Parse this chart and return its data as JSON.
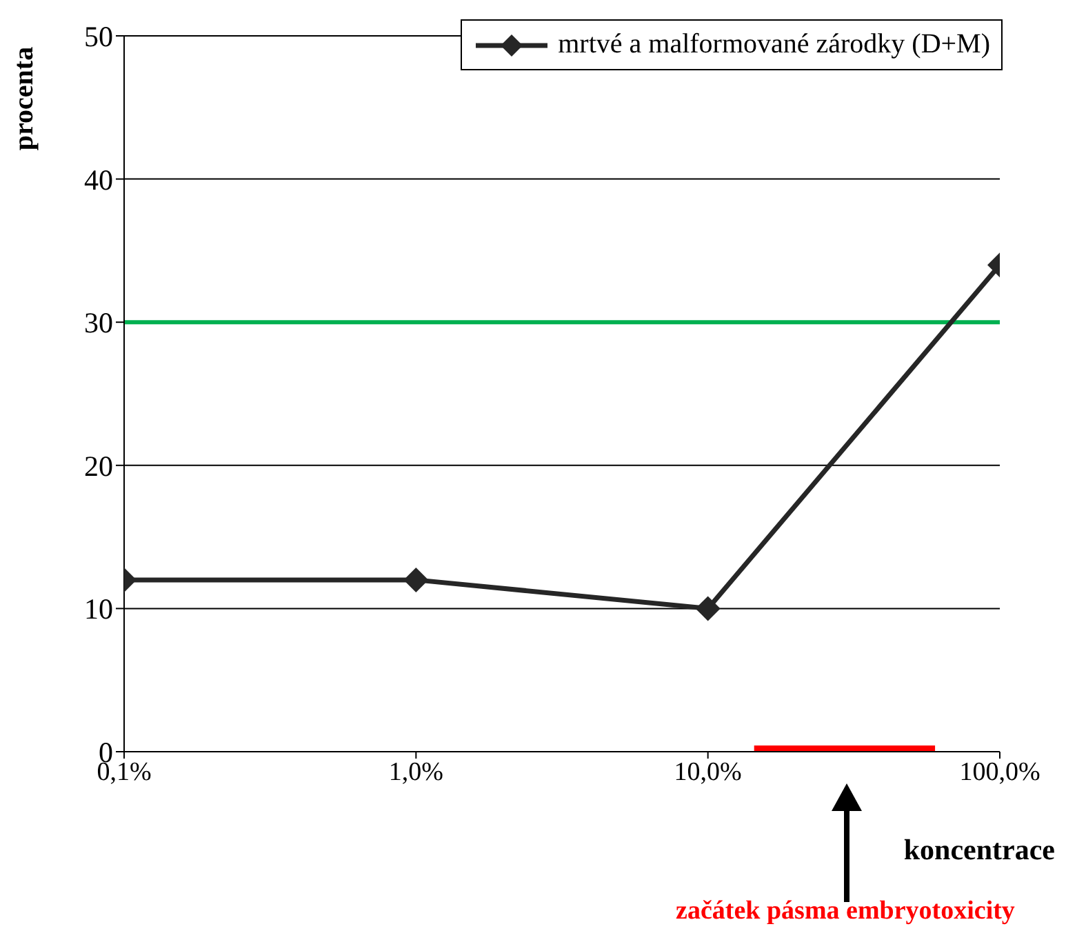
{
  "chart_data": {
    "type": "line",
    "ylabel": "procenta",
    "xlabel": "koncentrace",
    "log": "x",
    "x": [
      0.1,
      1,
      10,
      100
    ],
    "series": [
      {
        "name": "mrtvé a malformované zárodky (D+M)",
        "color": "#262626",
        "values": [
          12,
          12,
          10,
          34
        ]
      },
      {
        "type": "line",
        "x": [
          14.4,
          60
        ],
        "values": [
          0,
          0
        ],
        "color": "#ff0000",
        "marker": "none"
      }
    ],
    "xlim": [
      0.1,
      100
    ],
    "xticks": [
      {
        "value": 0.1,
        "label": "0,1%"
      },
      {
        "value": 1,
        "label": "1,0%"
      },
      {
        "value": 10,
        "label": "10,0%"
      },
      {
        "value": 100,
        "label": "100,0%"
      }
    ],
    "ylim": [
      0,
      50
    ],
    "yticks": [
      0,
      10,
      20,
      30,
      40,
      50
    ],
    "grid": "y",
    "legend": "top right",
    "marker": "diamond",
    "line_style": "solid",
    "ref_lines": [
      {
        "axis": "y",
        "value": 30,
        "color": "#00b050"
      }
    ],
    "annotations": [
      "začátek pásma embryotoxicity"
    ]
  }
}
